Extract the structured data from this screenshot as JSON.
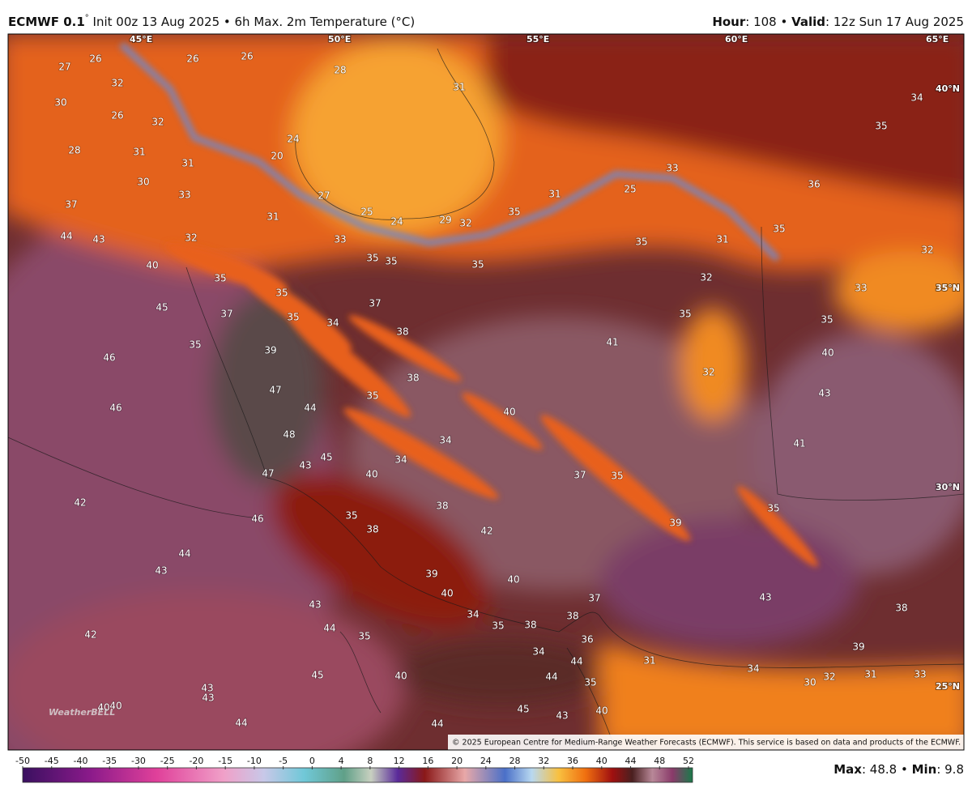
{
  "header": {
    "title_bold": "ECMWF 0.1",
    "title_degree": "°",
    "title_rest": " Init 00z 13 Aug 2025 • 6h Max. 2m Temperature (°C)",
    "hour_label": "Hour",
    "hour_value": ": 108 • ",
    "valid_label": "Valid",
    "valid_value": ": 12z Sun 17 Aug 2025"
  },
  "longitude_labels": [
    "45°E",
    "50°E",
    "55°E",
    "60°E",
    "65°E"
  ],
  "latitude_labels": [
    "40°N",
    "35°N",
    "30°N",
    "25°N"
  ],
  "map_labels": [
    27,
    26,
    32,
    26,
    26,
    28,
    30,
    26,
    32,
    31,
    28,
    31,
    31,
    30,
    33,
    20,
    24,
    27,
    25,
    24,
    29,
    32,
    35,
    31,
    25,
    33,
    36,
    35,
    34,
    37,
    44,
    43,
    32,
    31,
    33,
    35,
    35,
    35,
    35,
    31,
    35,
    32,
    32,
    33,
    40,
    35,
    35,
    35,
    37,
    34,
    37,
    38,
    35,
    39,
    46,
    45,
    38,
    41,
    35,
    35,
    40,
    32,
    43,
    47,
    44,
    35,
    40,
    46,
    48,
    34,
    34,
    45,
    43,
    47,
    40,
    41,
    37,
    35,
    42,
    46,
    35,
    38,
    38,
    42,
    35,
    39,
    44,
    43,
    39,
    40,
    40,
    37,
    43,
    43,
    34,
    35,
    38,
    38,
    38,
    44,
    35,
    36,
    34,
    39,
    31,
    34,
    44,
    30,
    32,
    31,
    33,
    44,
    42,
    45,
    40,
    35,
    43,
    43,
    40,
    40,
    45,
    43,
    40,
    44,
    44
  ],
  "copyright": "© 2025 European Centre for Medium-Range Weather Forecasts (ECMWF). This service is based on data and products of the ECMWF.",
  "watermark": "WeatherBELL",
  "colorbar": {
    "ticks": [
      -50,
      -45,
      -40,
      -35,
      -30,
      -25,
      -20,
      -15,
      -10,
      -5,
      0,
      4,
      8,
      12,
      16,
      20,
      24,
      28,
      32,
      36,
      40,
      44,
      48,
      52
    ]
  },
  "stats": {
    "max_label": "Max",
    "max_value": ": 48.8 • ",
    "min_label": "Min",
    "min_value": ": 9.8"
  }
}
